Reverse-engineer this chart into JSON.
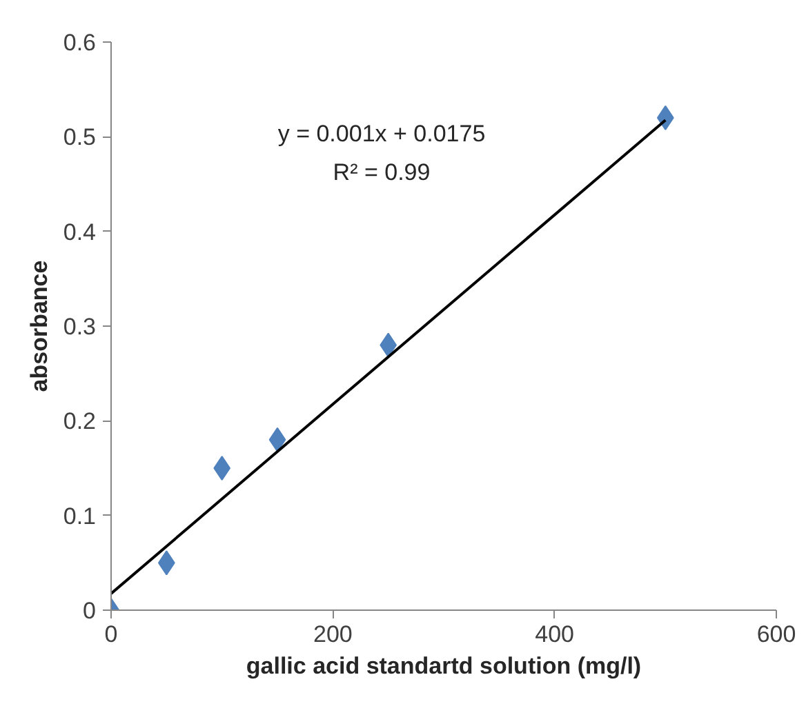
{
  "chart_data": {
    "type": "scatter",
    "xlabel": "gallic acid standartd solution (mg/l)",
    "ylabel": "absorbance",
    "annotations": [
      "y = 0.001x + 0.0175",
      "R² = 0.99"
    ],
    "xlim": [
      0,
      600
    ],
    "xticks": [
      0,
      200,
      400,
      600
    ],
    "ylim": [
      0,
      0.6
    ],
    "yticks": [
      0,
      0.1,
      0.2,
      0.3,
      0.4,
      0.5,
      0.6
    ],
    "grid": false,
    "series": [
      {
        "color": "#4f81bd",
        "marker": "diamond",
        "x": [
          0,
          50,
          100,
          150,
          250,
          500
        ],
        "values": [
          0,
          0.05,
          0.15,
          0.18,
          0.28,
          0.52
        ]
      },
      {
        "type": "line",
        "color": "#000000",
        "marker": "none",
        "line_style": "solid",
        "x": [
          0,
          500
        ],
        "values": [
          0.0175,
          0.5175
        ]
      }
    ]
  }
}
